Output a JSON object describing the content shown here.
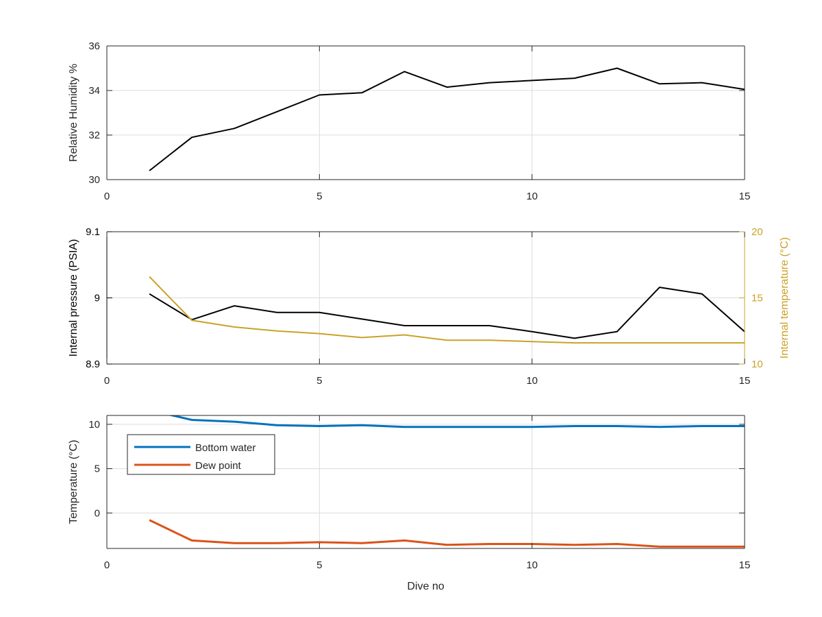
{
  "chart_data": [
    {
      "type": "line",
      "xlabel": "",
      "ylabel": "Relative Humidity %",
      "xlim": [
        0,
        15
      ],
      "ylim": [
        30,
        36
      ],
      "xticks": [
        0,
        5,
        10,
        15
      ],
      "yticks": [
        30,
        32,
        34,
        36
      ],
      "grid": true,
      "series": [
        {
          "color": "#000000",
          "x": [
            1,
            2,
            3,
            4,
            5,
            6,
            7,
            8,
            9,
            10,
            11,
            12,
            13,
            14,
            15
          ],
          "y": [
            30.4,
            31.9,
            32.3,
            33.05,
            33.8,
            33.9,
            34.85,
            34.15,
            34.35,
            34.45,
            34.55,
            35.0,
            34.3,
            34.35,
            34.05
          ]
        }
      ]
    },
    {
      "type": "line",
      "xlabel": "",
      "ylabel": "Internal pressure (PSIA)",
      "ylabel_right": "Internal temperature (°C)",
      "xlim": [
        0,
        15
      ],
      "ylim": [
        8.9,
        9.1
      ],
      "ylim_right": [
        10,
        20
      ],
      "xticks": [
        0,
        5,
        10,
        15
      ],
      "yticks": [
        8.9,
        9,
        9.1
      ],
      "yticks_right": [
        10,
        15,
        20
      ],
      "grid": true,
      "axis_colors": {
        "left": "#000000",
        "right": "#c9a227"
      },
      "series": [
        {
          "color": "#000000",
          "axis": "left",
          "x": [
            1,
            2,
            3,
            4,
            5,
            6,
            7,
            8,
            9,
            10,
            11,
            12,
            13,
            14,
            15
          ],
          "y": [
            9.006,
            8.967,
            8.988,
            8.978,
            8.978,
            8.968,
            8.958,
            8.958,
            8.958,
            8.949,
            8.939,
            8.949,
            9.016,
            9.006,
            8.949
          ]
        },
        {
          "color": "#c9a227",
          "axis": "right",
          "x": [
            1,
            2,
            3,
            4,
            5,
            6,
            7,
            8,
            9,
            10,
            11,
            12,
            13,
            14,
            15
          ],
          "y": [
            16.6,
            13.3,
            12.8,
            12.5,
            12.3,
            12.0,
            12.2,
            11.8,
            11.8,
            11.7,
            11.6,
            11.6,
            11.6,
            11.6,
            11.6
          ]
        }
      ]
    },
    {
      "type": "line",
      "xlabel": "Dive no",
      "ylabel": "Temperature (°C)",
      "xlim": [
        0,
        15
      ],
      "ylim": [
        -4,
        11
      ],
      "xticks": [
        0,
        5,
        10,
        15
      ],
      "yticks": [
        0,
        5,
        10
      ],
      "grid": true,
      "legend": "top-left",
      "series": [
        {
          "name": "Bottom water",
          "color": "#0072bd",
          "x": [
            1,
            2,
            3,
            4,
            5,
            6,
            7,
            8,
            9,
            10,
            11,
            12,
            13,
            14,
            15
          ],
          "y": [
            11.6,
            10.5,
            10.3,
            9.9,
            9.8,
            9.9,
            9.7,
            9.7,
            9.7,
            9.7,
            9.8,
            9.8,
            9.7,
            9.8,
            9.8
          ]
        },
        {
          "name": "Dew point",
          "color": "#d95319",
          "x": [
            1,
            2,
            3,
            4,
            5,
            6,
            7,
            8,
            9,
            10,
            11,
            12,
            13,
            14,
            15
          ],
          "y": [
            -0.8,
            -3.1,
            -3.4,
            -3.4,
            -3.3,
            -3.4,
            -3.1,
            -3.6,
            -3.5,
            -3.5,
            -3.6,
            -3.5,
            -3.8,
            -3.8,
            -3.8
          ]
        }
      ]
    }
  ]
}
